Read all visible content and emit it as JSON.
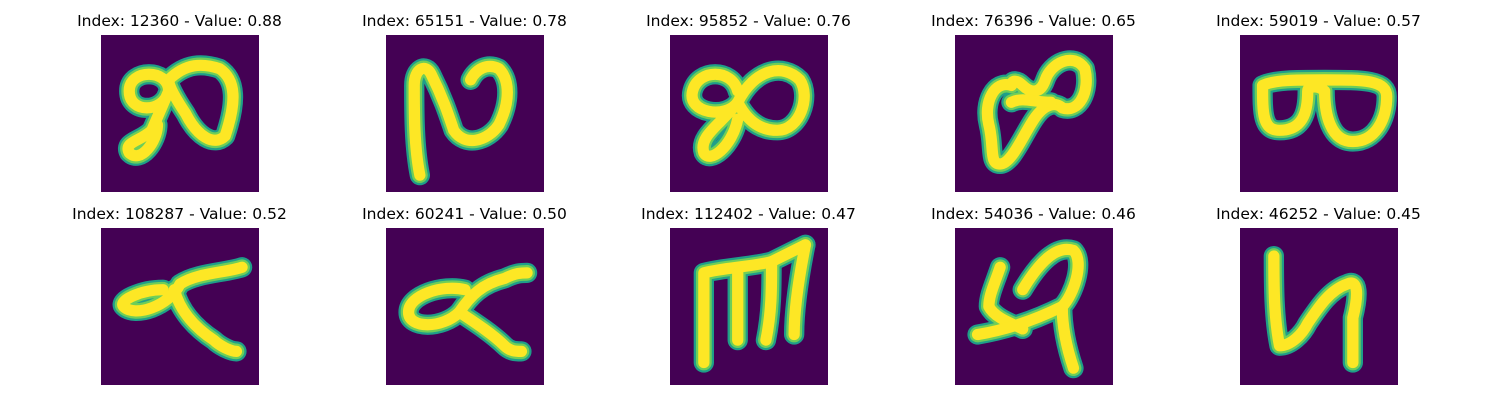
{
  "colors": {
    "background": "#440154",
    "edge": "#1f9e89",
    "mid": "#6ece58",
    "core": "#fde725"
  },
  "panels": [
    {
      "title": "Index: 12360 - Value: 0.88",
      "index": 12360,
      "value": 0.88
    },
    {
      "title": "Index: 65151 - Value: 0.78",
      "index": 65151,
      "value": 0.78
    },
    {
      "title": "Index: 95852 - Value: 0.76",
      "index": 95852,
      "value": 0.76
    },
    {
      "title": "Index: 76396 - Value: 0.65",
      "index": 76396,
      "value": 0.65
    },
    {
      "title": "Index: 59019 - Value: 0.57",
      "index": 59019,
      "value": 0.57
    },
    {
      "title": "Index: 108287 - Value: 0.52",
      "index": 108287,
      "value": 0.52
    },
    {
      "title": "Index: 60241 - Value: 0.50",
      "index": 60241,
      "value": 0.5
    },
    {
      "title": "Index: 112402 - Value: 0.47",
      "index": 112402,
      "value": 0.47
    },
    {
      "title": "Index: 54036 - Value: 0.46",
      "index": 54036,
      "value": 0.46
    },
    {
      "title": "Index: 46252 - Value: 0.45",
      "index": 46252,
      "value": 0.45
    }
  ]
}
